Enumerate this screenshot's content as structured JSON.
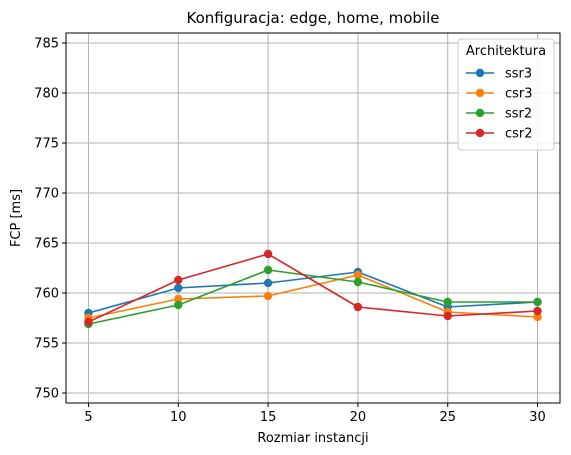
{
  "chart_data": {
    "type": "line",
    "title": "Konfiguracja: edge, home, mobile",
    "xlabel": "Rozmiar instancji",
    "ylabel": "FCP [ms]",
    "x": [
      5,
      10,
      15,
      20,
      25,
      30
    ],
    "xticks": [
      5,
      10,
      15,
      20,
      25,
      30
    ],
    "xlim": [
      3.75,
      31.25
    ],
    "yticks": [
      750,
      755,
      760,
      765,
      770,
      775,
      780,
      785
    ],
    "ylim": [
      749,
      786
    ],
    "grid": true,
    "legend": {
      "title": "Architektura",
      "placement": "top-right"
    },
    "series": [
      {
        "name": "ssr3",
        "color": "#1f77b4",
        "values": [
          758.0,
          760.5,
          761.0,
          762.1,
          758.6,
          759.1
        ]
      },
      {
        "name": "csr3",
        "color": "#ff7f0e",
        "values": [
          757.5,
          759.4,
          759.7,
          761.8,
          758.1,
          757.6
        ]
      },
      {
        "name": "ssr2",
        "color": "#2ca02c",
        "values": [
          756.9,
          758.8,
          762.3,
          761.1,
          759.1,
          759.1
        ]
      },
      {
        "name": "csr2",
        "color": "#d62728",
        "values": [
          757.1,
          761.3,
          763.9,
          758.6,
          757.7,
          758.2
        ]
      }
    ]
  }
}
